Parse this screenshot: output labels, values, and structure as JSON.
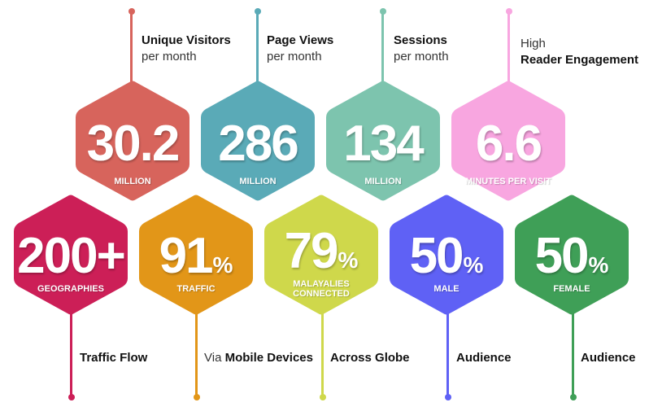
{
  "colors": {
    "visitors": "#d7645c",
    "pageviews": "#5aaab7",
    "sessions": "#7dc4ae",
    "engagement": "#f8a6e0",
    "geographies": "#cc1f57",
    "traffic": "#e29618",
    "malayalies": "#cfd84b",
    "male": "#5f61f5",
    "female": "#3f9f57"
  },
  "top": [
    {
      "value": "30.2",
      "unit": "",
      "sub": "MILLION",
      "cap_bold": "Unique Visitors",
      "cap_light": "per month"
    },
    {
      "value": "286",
      "unit": "",
      "sub": "MILLION",
      "cap_bold": "Page Views",
      "cap_light": "per month"
    },
    {
      "value": "134",
      "unit": "",
      "sub": "MILLION",
      "cap_bold": "Sessions",
      "cap_light": "per month"
    },
    {
      "value": "6.6",
      "unit": "",
      "sub": "MINUTES PER VISIT",
      "cap_light": "High",
      "cap_bold": "Reader Engagement"
    }
  ],
  "bottom": [
    {
      "value": "200+",
      "unit": "",
      "sub": "GEOGRAPHIES",
      "cap_pre": "",
      "cap_bold": "Traffic Flow"
    },
    {
      "value": "91",
      "unit": "%",
      "sub": "TRAFFIC",
      "cap_pre": "Via",
      "cap_bold": "Mobile Devices"
    },
    {
      "value": "79",
      "unit": "%",
      "sub_line1": "MALAYALIES",
      "sub_line2": "CONNECTED",
      "cap_pre": "",
      "cap_bold": "Across Globe"
    },
    {
      "value": "50",
      "unit": "%",
      "sub": "MALE",
      "cap_pre": "",
      "cap_bold": "Audience"
    },
    {
      "value": "50",
      "unit": "%",
      "sub": "FEMALE",
      "cap_pre": "",
      "cap_bold": "Audience"
    }
  ]
}
